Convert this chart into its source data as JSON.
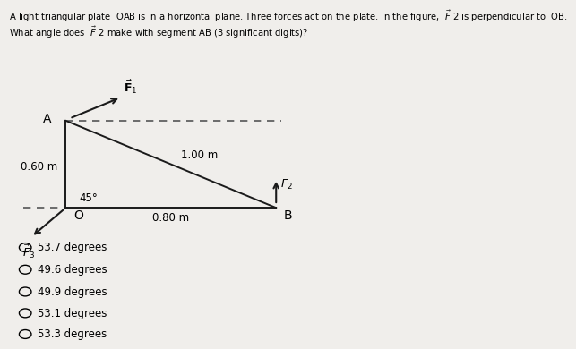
{
  "bg_color": "#f0eeeb",
  "text_color": "#000000",
  "line_color": "#1a1a1a",
  "dashed_color": "#555555",
  "arrow_color": "#1a1a1a",
  "O": [
    0.0,
    0.0
  ],
  "A": [
    0.0,
    0.6
  ],
  "B": [
    0.8,
    0.0
  ],
  "OA_label": "0.60 m",
  "OB_label": "0.80 m",
  "AB_label": "1.00 m",
  "angle_label": "45°",
  "choices": [
    "53.7 degrees",
    "49.6 degrees",
    "49.9 degrees",
    "53.1 degrees",
    "53.3 degrees"
  ],
  "header1": "A light triangular plate  OAB is in a horizontal plane. Three forces act on the plate. In the figure,",
  "header1b": " 2 is perpendicular to  OB.",
  "header2": " 2 make with segment AB (3 significant digits)?",
  "header2a": "What angle does "
}
